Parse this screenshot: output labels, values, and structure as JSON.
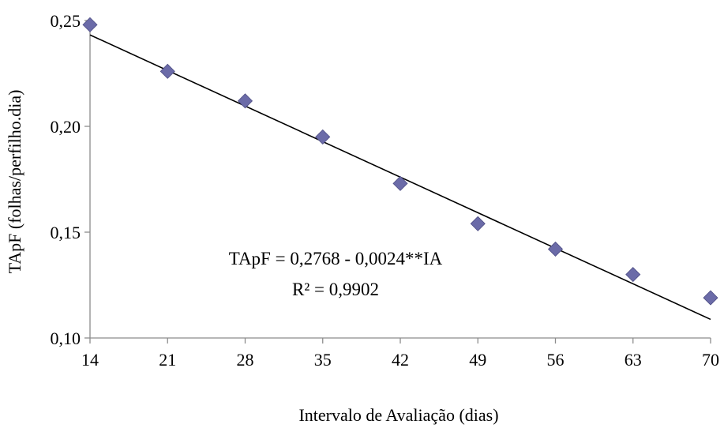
{
  "chart_data": {
    "type": "scatter",
    "xlabel": "Intervalo de Avaliação (dias)",
    "ylabel": "TApF (folhas/perfilho.dia)",
    "x_ticks": [
      "14",
      "21",
      "28",
      "35",
      "42",
      "49",
      "56",
      "63",
      "70"
    ],
    "y_ticks": [
      "0,10",
      "0,15",
      "0,20",
      "0,25"
    ],
    "xlim": [
      14,
      70
    ],
    "ylim": [
      0.1,
      0.25
    ],
    "grid": false,
    "series": [
      {
        "x": [
          14,
          21,
          28,
          35,
          42,
          49,
          56,
          63,
          70
        ],
        "y": [
          0.248,
          0.226,
          0.212,
          0.195,
          0.173,
          0.154,
          0.142,
          0.13,
          0.119
        ],
        "marker": "diamond",
        "color": "#6b6ba8"
      }
    ],
    "trendline": {
      "intercept": 0.2768,
      "slope": -0.0024,
      "color": "#000000"
    },
    "annotations": {
      "equation": "TApF = 0,2768 - 0,0024**IA",
      "r_squared": "R² = 0,9902"
    }
  }
}
